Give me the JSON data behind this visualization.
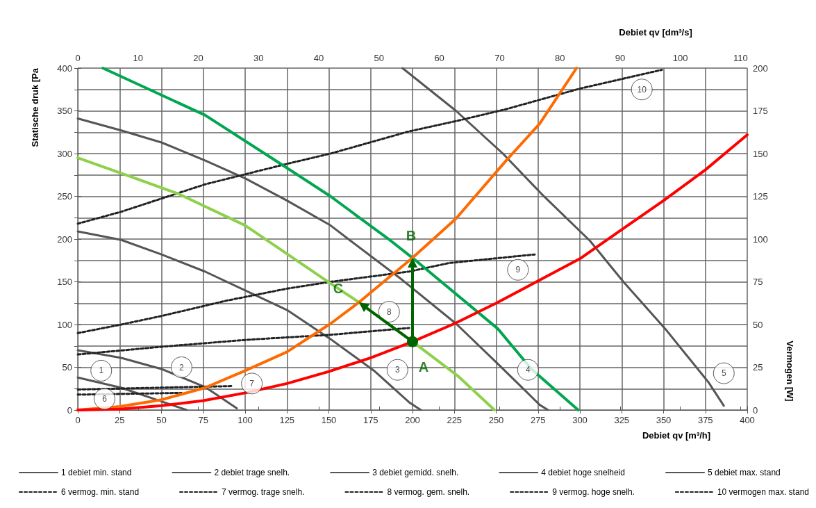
{
  "chart_data": {
    "type": "line",
    "xlabel": "Debiet qv [m³/h]",
    "x2label": "Debiet qv [dm³/s]",
    "ylabel": "Statische druk [Pa",
    "y2label": "Vermogen [W]",
    "xlim": [
      0,
      400
    ],
    "xticks": [
      0,
      25,
      50,
      75,
      100,
      125,
      150,
      175,
      200,
      225,
      250,
      275,
      300,
      325,
      350,
      375,
      400
    ],
    "x2lim": [
      0,
      111.1
    ],
    "x2ticks": [
      0,
      10,
      20,
      30,
      40,
      50,
      60,
      70,
      80,
      90,
      100,
      110
    ],
    "ylim": [
      0,
      400
    ],
    "yticks": [
      0,
      {
        "value": 25,
        "label": null
      },
      50,
      {
        "value": 75,
        "label": null
      },
      100,
      {
        "value": 125,
        "label": null
      },
      150,
      {
        "value": 175,
        "label": null
      },
      200,
      {
        "value": 225,
        "label": null
      },
      250,
      {
        "value": 275,
        "label": null
      },
      300,
      {
        "value": 325,
        "label": null
      },
      350,
      {
        "value": 375,
        "label": null
      },
      400
    ],
    "y2lim": [
      0,
      200
    ],
    "y2ticks": [
      0,
      25,
      50,
      75,
      100,
      125,
      150,
      175,
      200
    ],
    "grid": true,
    "legend": "bottom",
    "marker": "none",
    "series": [
      {
        "name": "1 debiet min. stand",
        "color": "#555555",
        "x": [
          0,
          26,
          50,
          65
        ],
        "values": [
          38,
          26,
          10,
          0
        ]
      },
      {
        "name": "2 debiet trage snelh.",
        "color": "#555555",
        "x": [
          0,
          26,
          50,
          76,
          95
        ],
        "values": [
          70,
          61,
          48,
          27,
          2
        ]
      },
      {
        "name": "3 debiet gemidd. snelh.",
        "color": "#555555",
        "x": [
          0,
          26,
          50,
          76,
          100,
          125,
          151,
          177,
          198,
          205
        ],
        "values": [
          209,
          199,
          182,
          162,
          140,
          117,
          83,
          46,
          9,
          0
        ]
      },
      {
        "name": "4 debiet hoge snelheid",
        "color": "#555555",
        "x": [
          0,
          26,
          50,
          76,
          100,
          125,
          151,
          163,
          194,
          226,
          251,
          276,
          281
        ],
        "values": [
          341,
          327,
          313,
          292,
          271,
          245,
          216,
          198,
          152,
          101,
          54,
          6,
          0
        ]
      },
      {
        "name": "5 debiet max. stand",
        "color": "#555555",
        "x": [
          194,
          226,
          254,
          277,
          306,
          326,
          351,
          377,
          386
        ],
        "values": [
          400,
          350,
          300,
          253,
          198,
          150,
          95,
          32,
          5
        ]
      },
      {
        "name": "6 vermog. min. stand",
        "color": "#222222",
        "axis": "y2",
        "line_style": "dashed",
        "x": [
          0,
          62
        ],
        "values": [
          9,
          10
        ]
      },
      {
        "name": "7 vermog. trage snelh.",
        "color": "#222222",
        "axis": "y2",
        "line_style": "dashed",
        "x": [
          0,
          92
        ],
        "values": [
          12,
          14
        ]
      },
      {
        "name": "8 vermog. gem. snelh.",
        "color": "#222222",
        "axis": "y2",
        "line_style": "dashed",
        "x": [
          0,
          50,
          100,
          151,
          198
        ],
        "values": [
          32.5,
          37,
          41,
          44,
          48
        ]
      },
      {
        "name": "9 vermog. hoge snelh.",
        "color": "#222222",
        "axis": "y2",
        "line_style": "dashed",
        "x": [
          0,
          26,
          50,
          89,
          125,
          151,
          198,
          222,
          273
        ],
        "values": [
          45,
          50,
          55,
          64,
          71,
          75,
          81,
          86,
          91
        ]
      },
      {
        "name": "10 vermogen max. stand",
        "color": "#222222",
        "axis": "y2",
        "line_style": "dashed",
        "x": [
          0,
          26,
          76,
          125,
          151,
          198,
          226,
          256,
          300,
          349
        ],
        "values": [
          109,
          116,
          132,
          144,
          150,
          163,
          169,
          176,
          188,
          199
        ]
      },
      {
        "color": "#00a650",
        "x": [
          15,
          76,
          122,
          151,
          187,
          200,
          251,
          271,
          299
        ],
        "values": [
          400,
          345,
          287,
          250,
          198,
          178,
          95,
          48,
          0
        ]
      },
      {
        "color": "#8dd04a",
        "x": [
          0,
          26,
          60,
          100,
          151,
          168,
          200,
          227,
          249
        ],
        "values": [
          295,
          277,
          253,
          216,
          148,
          126,
          80,
          40,
          0
        ]
      },
      {
        "color": "#ff6a00",
        "x": [
          0,
          25,
          50,
          76,
          100,
          125,
          151,
          168,
          200,
          226,
          256,
          276,
          298
        ],
        "values": [
          0,
          4,
          12,
          26,
          46,
          68,
          101,
          126,
          178,
          224,
          292,
          335,
          400
        ]
      },
      {
        "color": "#ff0000",
        "x": [
          0,
          25,
          50,
          75,
          100,
          125,
          150,
          175,
          200,
          225,
          250,
          275,
          300,
          325,
          350,
          375,
          400
        ],
        "values": [
          0,
          1,
          5,
          11,
          20,
          31,
          45,
          61,
          80,
          101,
          125,
          151,
          177,
          211,
          245,
          281,
          322
        ]
      }
    ],
    "annotations": [
      {
        "text": "1",
        "x": 14,
        "y": 46
      },
      {
        "text": "2",
        "x": 62,
        "y": 50
      },
      {
        "text": "3",
        "x": 191,
        "y": 47
      },
      {
        "text": "4",
        "x": 269,
        "y": 47
      },
      {
        "text": "5",
        "x": 386,
        "y": 43
      },
      {
        "text": "6",
        "x": 16,
        "y": 13
      },
      {
        "text": "7",
        "x": 104,
        "y": 31
      },
      {
        "text": "8",
        "x": 186,
        "y": 115
      },
      {
        "text": "9",
        "x": 263,
        "y": 164
      },
      {
        "text": "10",
        "x": 337,
        "y": 375
      },
      {
        "text": "A",
        "x": 200,
        "y": 80
      },
      {
        "text": "B",
        "x": 200,
        "y": 178
      },
      {
        "text": "C",
        "x": 168,
        "y": 126
      }
    ]
  }
}
